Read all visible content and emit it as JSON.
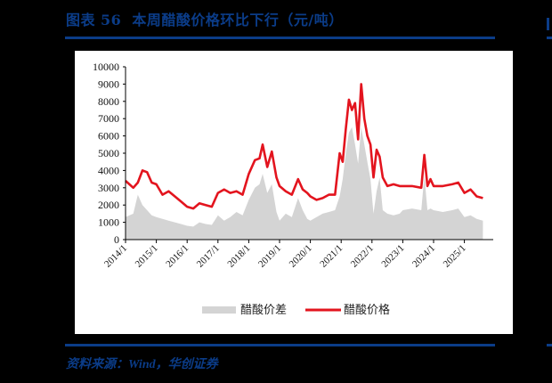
{
  "header": {
    "figure_label": "图表",
    "figure_number": "56",
    "title": "本周醋酸价格环比下行（元/吨）"
  },
  "footer": {
    "source": "资料来源：Wind，华创证券"
  },
  "colors": {
    "brand_blue": "#0b3c88",
    "price_line": "#e3141e",
    "spread_area": "#d4d4d4"
  },
  "chart_data": {
    "type": "line",
    "title": "本周醋酸价格环比下行（元/吨）",
    "xlabel": "",
    "ylabel": "元/吨",
    "ylim": [
      0,
      10000
    ],
    "yticks": [
      0,
      1000,
      2000,
      3000,
      4000,
      5000,
      6000,
      7000,
      8000,
      9000,
      10000
    ],
    "xticks": [
      "2014/1",
      "2015/1",
      "2016/1",
      "2017/1",
      "2018/1",
      "2019/1",
      "2020/1",
      "2021/1",
      "2022/1",
      "2023/1",
      "2024/1",
      "2025/1"
    ],
    "grid": false,
    "legend_position": "bottom",
    "x": [
      2014.0,
      2014.25,
      2014.4,
      2014.55,
      2014.7,
      2014.85,
      2015.0,
      2015.2,
      2015.4,
      2015.6,
      2015.8,
      2016.0,
      2016.2,
      2016.4,
      2016.6,
      2016.8,
      2017.0,
      2017.2,
      2017.4,
      2017.6,
      2017.8,
      2018.0,
      2018.2,
      2018.35,
      2018.45,
      2018.6,
      2018.75,
      2018.9,
      2019.0,
      2019.2,
      2019.4,
      2019.6,
      2019.75,
      2019.9,
      2020.0,
      2020.2,
      2020.4,
      2020.6,
      2020.8,
      2020.95,
      2021.05,
      2021.15,
      2021.25,
      2021.35,
      2021.45,
      2021.55,
      2021.65,
      2021.75,
      2021.85,
      2021.95,
      2022.05,
      2022.15,
      2022.25,
      2022.35,
      2022.5,
      2022.7,
      2022.9,
      2023.0,
      2023.3,
      2023.6,
      2023.7,
      2023.8,
      2023.9,
      2024.0,
      2024.3,
      2024.6,
      2024.8,
      2025.0,
      2025.2,
      2025.4,
      2025.6
    ],
    "series": [
      {
        "name": "醋酸价格",
        "kind": "line",
        "values": [
          3400,
          3000,
          3300,
          4000,
          3900,
          3300,
          3200,
          2600,
          2800,
          2500,
          2200,
          1900,
          1800,
          2100,
          2000,
          1900,
          2700,
          2900,
          2700,
          2800,
          2600,
          3800,
          4600,
          4700,
          5500,
          4200,
          5100,
          3600,
          3100,
          2800,
          2600,
          3500,
          2900,
          2700,
          2500,
          2300,
          2400,
          2600,
          2600,
          5000,
          4500,
          6400,
          8100,
          7500,
          7900,
          5800,
          9000,
          7000,
          6000,
          5500,
          3600,
          5200,
          4800,
          3600,
          3100,
          3200,
          3100,
          3100,
          3100,
          3000,
          4900,
          3100,
          3500,
          3100,
          3100,
          3200,
          3300,
          2700,
          2900,
          2500,
          2400
        ]
      },
      {
        "name": "醋酸价差",
        "kind": "area",
        "values": [
          1300,
          1500,
          2600,
          2000,
          1700,
          1400,
          1300,
          1200,
          1100,
          1000,
          900,
          800,
          750,
          1000,
          900,
          850,
          1400,
          1100,
          1300,
          1600,
          1400,
          2300,
          3000,
          3200,
          3800,
          2700,
          3200,
          1600,
          1100,
          1500,
          1300,
          2400,
          1700,
          1200,
          1100,
          1300,
          1500,
          1600,
          1700,
          2500,
          3500,
          5000,
          6200,
          6500,
          5500,
          4400,
          6500,
          5500,
          4500,
          3500,
          1500,
          2800,
          3600,
          1700,
          1500,
          1400,
          1500,
          1700,
          1800,
          1700,
          3700,
          1700,
          1800,
          1700,
          1600,
          1700,
          1800,
          1300,
          1400,
          1200,
          1100
        ]
      }
    ]
  },
  "legend": {
    "spread_label": "醋酸价差",
    "price_label": "醋酸价格"
  }
}
